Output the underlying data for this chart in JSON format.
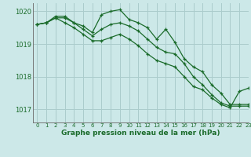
{
  "title": "Graphe pression niveau de la mer (hPa)",
  "bg_color": "#cce8e8",
  "grid_color": "#aacccc",
  "line_color": "#1a6b2a",
  "xlim": [
    -0.5,
    23
  ],
  "ylim": [
    1016.6,
    1020.25
  ],
  "yticks": [
    1017,
    1018,
    1019,
    1020
  ],
  "xticks": [
    0,
    1,
    2,
    3,
    4,
    5,
    6,
    7,
    8,
    9,
    10,
    11,
    12,
    13,
    14,
    15,
    16,
    17,
    18,
    19,
    20,
    21,
    22,
    23
  ],
  "line1_x": [
    0,
    1,
    2,
    3,
    4,
    5,
    6,
    7,
    8,
    9,
    10,
    11,
    12,
    13,
    14,
    15,
    16,
    17,
    18,
    19,
    20,
    21,
    22,
    23
  ],
  "line1_y": [
    1019.6,
    1019.65,
    1019.85,
    1019.85,
    1019.65,
    1019.55,
    1019.35,
    1019.9,
    1020.0,
    1020.05,
    1019.75,
    1019.65,
    1019.5,
    1019.15,
    1019.45,
    1019.05,
    1018.55,
    1018.3,
    1018.15,
    1017.75,
    1017.5,
    1017.15,
    1017.15,
    1017.15
  ],
  "line2_x": [
    0,
    1,
    2,
    3,
    4,
    5,
    6,
    7,
    8,
    9,
    10,
    11,
    12,
    13,
    14,
    15,
    16,
    17,
    18,
    19,
    20,
    21,
    22,
    23
  ],
  "line2_y": [
    1019.6,
    1019.65,
    1019.8,
    1019.8,
    1019.65,
    1019.45,
    1019.25,
    1019.45,
    1019.6,
    1019.65,
    1019.55,
    1019.4,
    1019.15,
    1018.9,
    1018.75,
    1018.7,
    1018.4,
    1018.0,
    1017.75,
    1017.45,
    1017.2,
    1017.1,
    1017.1,
    1017.1
  ],
  "line3_x": [
    0,
    1,
    2,
    3,
    4,
    5,
    6,
    7,
    8,
    9,
    10,
    11,
    12,
    13,
    14,
    15,
    16,
    17,
    18,
    19,
    20,
    21,
    22,
    23
  ],
  "line3_y": [
    1019.6,
    1019.65,
    1019.8,
    1019.65,
    1019.5,
    1019.3,
    1019.1,
    1019.1,
    1019.2,
    1019.3,
    1019.15,
    1018.95,
    1018.7,
    1018.5,
    1018.4,
    1018.3,
    1018.0,
    1017.7,
    1017.6,
    1017.35,
    1017.15,
    1017.05,
    1017.55,
    1017.65
  ]
}
